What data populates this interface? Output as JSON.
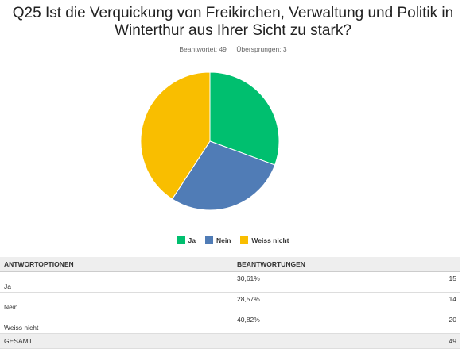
{
  "chart_data": {
    "type": "pie",
    "title": "Q25 Ist die Verquickung von Freikirchen, Verwaltung und Politik in Winterthur aus Ihrer Sicht zu stark?",
    "categories": [
      "Ja",
      "Nein",
      "Weiss nicht"
    ],
    "values": [
      30.61,
      28.57,
      40.82
    ],
    "colors": [
      "#00bf6f",
      "#507cb6",
      "#f9be00"
    ],
    "legend_position": "bottom"
  },
  "header": {
    "title_line1": "Q25 Ist die Verquickung von Freikirchen, Verwaltung und Politik in",
    "title_line2": "Winterthur aus Ihrer Sicht zu stark?",
    "answered": "Beantwortet: 49",
    "skipped": "Übersprungen: 3"
  },
  "table": {
    "col_options": "ANTWORTOPTIONEN",
    "col_responses": "BEANTWORTUNGEN",
    "rows": [
      {
        "label": "Ja",
        "percent": "30,61%",
        "count": "15"
      },
      {
        "label": "Nein",
        "percent": "28,57%",
        "count": "14"
      },
      {
        "label": "Weiss nicht",
        "percent": "40,82%",
        "count": "20"
      }
    ],
    "total_label": "GESAMT",
    "total_count": "49"
  }
}
